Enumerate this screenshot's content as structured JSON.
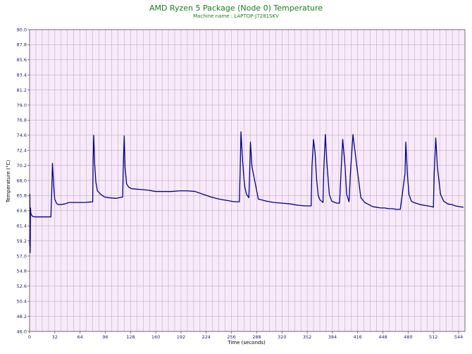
{
  "chart_data": {
    "type": "line",
    "title": "AMD Ryzen 5 Package (Node 0) Temperature",
    "subtitle": "Machine name : LAPTOP-J7281SKV",
    "xlabel": "Time (seconds)",
    "ylabel": "Temperature (°C)",
    "xlim": [
      0,
      552
    ],
    "ylim": [
      46.0,
      90.0
    ],
    "xticks": [
      "0",
      "32",
      "64",
      "96",
      "128",
      "160",
      "192",
      "224",
      "256",
      "288",
      "320",
      "352",
      "384",
      "416",
      "448",
      "480",
      "512",
      "544"
    ],
    "yticks": [
      "46.0",
      "48.2",
      "50.4",
      "52.6",
      "54.8",
      "57.0",
      "59.2",
      "61.4",
      "63.6",
      "65.8",
      "68.0",
      "70.2",
      "72.4",
      "74.6",
      "76.8",
      "79.0",
      "81.2",
      "83.4",
      "85.6",
      "87.8",
      "90.0"
    ],
    "grid": true,
    "colors": {
      "line": "#00008b",
      "plot_background": "#f8eafa",
      "grid": "#b89fb8",
      "title": "#1a7f1a"
    },
    "series": [
      {
        "x": [
          0,
          0.4,
          0.8,
          1.2,
          1.6,
          2.4,
          3.5,
          6,
          10,
          20,
          27,
          28,
          29,
          30,
          31,
          32,
          33,
          34,
          36,
          40,
          45,
          50,
          55,
          60,
          70,
          80,
          80.5,
          81.3,
          82.5,
          84,
          86,
          90,
          95,
          100,
          110,
          118,
          119,
          120,
          121,
          123,
          126,
          130,
          140,
          150,
          160,
          170,
          180,
          190,
          200,
          210,
          220,
          230,
          240,
          250,
          260,
          266,
          267,
          268,
          270,
          272,
          273,
          275,
          278,
          279,
          280,
          282,
          290,
          300,
          310,
          320,
          330,
          340,
          350,
          357,
          358,
          360,
          362,
          364,
          366,
          368,
          370,
          372,
          373,
          375,
          377,
          380,
          383,
          385,
          387,
          390,
          393,
          395,
          397,
          400,
          402,
          405,
          407,
          410,
          415,
          420,
          425,
          430,
          435,
          440,
          445,
          450,
          455,
          460,
          465,
          470,
          476,
          477,
          479,
          481,
          484,
          487,
          495,
          505,
          510,
          512,
          513,
          515,
          517,
          521,
          525,
          530,
          535,
          540,
          545,
          550
        ],
        "values": [
          58.5,
          66.0,
          57.5,
          64.0,
          63.2,
          63.0,
          62.8,
          62.7,
          62.7,
          62.7,
          62.7,
          66.0,
          70.5,
          68.5,
          66.5,
          65.2,
          65.0,
          64.7,
          64.5,
          64.5,
          64.6,
          64.8,
          64.8,
          64.8,
          64.8,
          64.9,
          71.0,
          74.6,
          70.5,
          67.8,
          66.5,
          66.0,
          65.6,
          65.5,
          65.4,
          65.6,
          71.0,
          74.5,
          70.0,
          67.5,
          67.0,
          66.8,
          66.7,
          66.6,
          66.4,
          66.4,
          66.4,
          66.5,
          66.5,
          66.4,
          66.0,
          65.6,
          65.3,
          65.1,
          64.9,
          64.9,
          69.5,
          75.1,
          71.0,
          68.0,
          67.0,
          66.0,
          65.5,
          69.0,
          73.6,
          70.0,
          65.3,
          65.0,
          64.8,
          64.7,
          64.6,
          64.4,
          64.3,
          64.3,
          70.0,
          74.0,
          72.0,
          68.0,
          65.8,
          65.2,
          65.0,
          64.8,
          69.5,
          74.7,
          70.5,
          66.0,
          65.0,
          64.9,
          64.8,
          64.7,
          64.7,
          69.5,
          74.0,
          70.0,
          66.0,
          64.9,
          69.5,
          74.7,
          70.0,
          65.5,
          64.8,
          64.5,
          64.2,
          64.1,
          64.0,
          64.0,
          63.9,
          63.9,
          63.8,
          63.8,
          69.0,
          73.6,
          69.0,
          66.0,
          65.0,
          64.8,
          64.5,
          64.3,
          64.2,
          64.1,
          69.0,
          74.2,
          70.0,
          66.0,
          65.0,
          64.6,
          64.5,
          64.3,
          64.2,
          64.1
        ]
      }
    ]
  }
}
